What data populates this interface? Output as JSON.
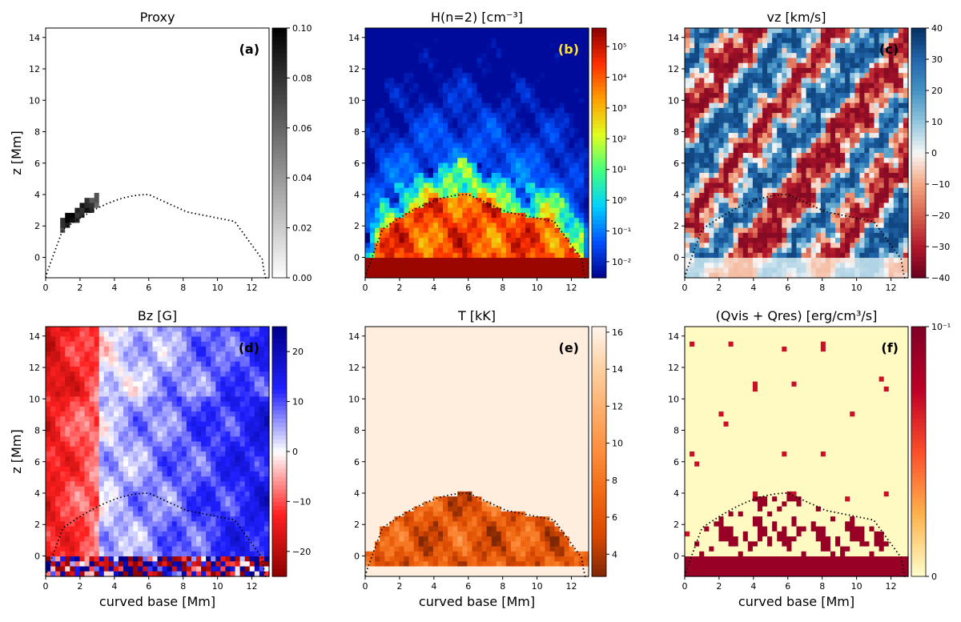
{
  "figure": {
    "xlabel": "curved base [Mm]",
    "ylabel": "z [Mm]"
  },
  "chart_data": [
    {
      "type": "heatmap",
      "field": "proxy",
      "title": "Proxy",
      "panel_label": "(a)",
      "panel_label_color": "#000000",
      "colormap": [
        "#ffffff",
        "#000000"
      ],
      "colorbar_ticks": [
        "0.00",
        "0.02",
        "0.04",
        "0.06",
        "0.08",
        "0.10"
      ],
      "colorbar_scale": "linear",
      "clim": [
        0.0,
        0.1
      ],
      "xlim": [
        0,
        13
      ],
      "ylim": [
        -1.3,
        14.6
      ],
      "xticks": [
        0,
        2,
        4,
        6,
        8,
        10,
        12
      ],
      "yticks": [
        0,
        2,
        4,
        6,
        8,
        10,
        12,
        14
      ],
      "show_xlabel": false,
      "show_ylabel": true,
      "overlay": "dotted loop"
    },
    {
      "type": "heatmap",
      "field": "hydrogen_n2",
      "title": "H(n=2) [cm⁻³]",
      "panel_label": "(b)",
      "panel_label_color": "#ffe135",
      "colormap": [
        "#00008b",
        "#0050ff",
        "#00d0ff",
        "#40ff80",
        "#e0ff20",
        "#ffa000",
        "#ff3000",
        "#8b0000"
      ],
      "colorbar_ticks": [
        "10⁻²",
        "10⁻¹",
        "10⁰",
        "10¹",
        "10²",
        "10³",
        "10⁴",
        "10⁵"
      ],
      "colorbar_scale": "log",
      "clim": [
        0.003,
        400000
      ],
      "xlim": [
        0,
        13
      ],
      "ylim": [
        -1.3,
        14.6
      ],
      "xticks": [
        0,
        2,
        4,
        6,
        8,
        10,
        12
      ],
      "yticks": [
        0,
        2,
        4,
        6,
        8,
        10,
        12,
        14
      ],
      "show_xlabel": false,
      "show_ylabel": false,
      "overlay": "dotted loop"
    },
    {
      "type": "heatmap",
      "field": "vz",
      "title": "vz [km/s]",
      "panel_label": "(c)",
      "panel_label_color": "#000000",
      "colormap": [
        "#67001f",
        "#b2182b",
        "#d6604d",
        "#f4a582",
        "#f7f7f7",
        "#92c5de",
        "#4393c3",
        "#2166ac",
        "#053061"
      ],
      "colorbar_ticks": [
        "−40",
        "−30",
        "−20",
        "−10",
        "0",
        "10",
        "20",
        "30",
        "40"
      ],
      "colorbar_scale": "linear",
      "clim": [
        -40,
        40
      ],
      "xlim": [
        0,
        13
      ],
      "ylim": [
        -1.3,
        14.6
      ],
      "xticks": [
        0,
        2,
        4,
        6,
        8,
        10,
        12
      ],
      "yticks": [
        0,
        2,
        4,
        6,
        8,
        10,
        12,
        14
      ],
      "show_xlabel": false,
      "show_ylabel": false,
      "overlay": "dotted loop"
    },
    {
      "type": "heatmap",
      "field": "bz",
      "title": "Bz [G]",
      "panel_label": "(d)",
      "panel_label_color": "#000000",
      "colormap": [
        "#8b0000",
        "#ff2020",
        "#ffffff",
        "#2020ff",
        "#00008b"
      ],
      "colorbar_ticks": [
        "−20",
        "−10",
        "0",
        "10",
        "20"
      ],
      "colorbar_scale": "linear",
      "clim": [
        -25,
        25
      ],
      "xlim": [
        0,
        13
      ],
      "ylim": [
        -1.3,
        14.6
      ],
      "xticks": [
        0,
        2,
        4,
        6,
        8,
        10,
        12
      ],
      "yticks": [
        0,
        2,
        4,
        6,
        8,
        10,
        12,
        14
      ],
      "show_xlabel": true,
      "show_ylabel": true,
      "overlay": "dotted loop"
    },
    {
      "type": "heatmap",
      "field": "temperature",
      "title": "T [kK]",
      "panel_label": "(e)",
      "panel_label_color": "#000000",
      "colormap": [
        "#7f2704",
        "#d94801",
        "#f16913",
        "#fd8d3c",
        "#fdae6b",
        "#fdd0a2",
        "#fff5eb"
      ],
      "colorbar_ticks": [
        "4",
        "6",
        "8",
        "10",
        "12",
        "14",
        "16"
      ],
      "colorbar_scale": "linear",
      "clim": [
        2.8,
        16.3
      ],
      "xlim": [
        0,
        13
      ],
      "ylim": [
        -1.3,
        14.6
      ],
      "xticks": [
        0,
        2,
        4,
        6,
        8,
        10,
        12
      ],
      "yticks": [
        0,
        2,
        4,
        6,
        8,
        10,
        12,
        14
      ],
      "show_xlabel": true,
      "show_ylabel": false,
      "overlay": "dotted loop"
    },
    {
      "type": "heatmap",
      "field": "heating",
      "title": "(Qvis + Qres) [erg/cm³/s]",
      "panel_label": "(f)",
      "panel_label_color": "#000000",
      "colormap": [
        "#ffffcc",
        "#feb24c",
        "#fc4e2a",
        "#bd0026",
        "#800026"
      ],
      "colorbar_ticks": [
        "0",
        "10⁻¹"
      ],
      "colorbar_scale": "linear",
      "clim": [
        0,
        0.1
      ],
      "xlim": [
        0,
        13
      ],
      "ylim": [
        -1.3,
        14.6
      ],
      "xticks": [
        0,
        2,
        4,
        6,
        8,
        10,
        12
      ],
      "yticks": [
        0,
        2,
        4,
        6,
        8,
        10,
        12,
        14
      ],
      "show_xlabel": true,
      "show_ylabel": false,
      "overlay": "dotted loop"
    }
  ]
}
